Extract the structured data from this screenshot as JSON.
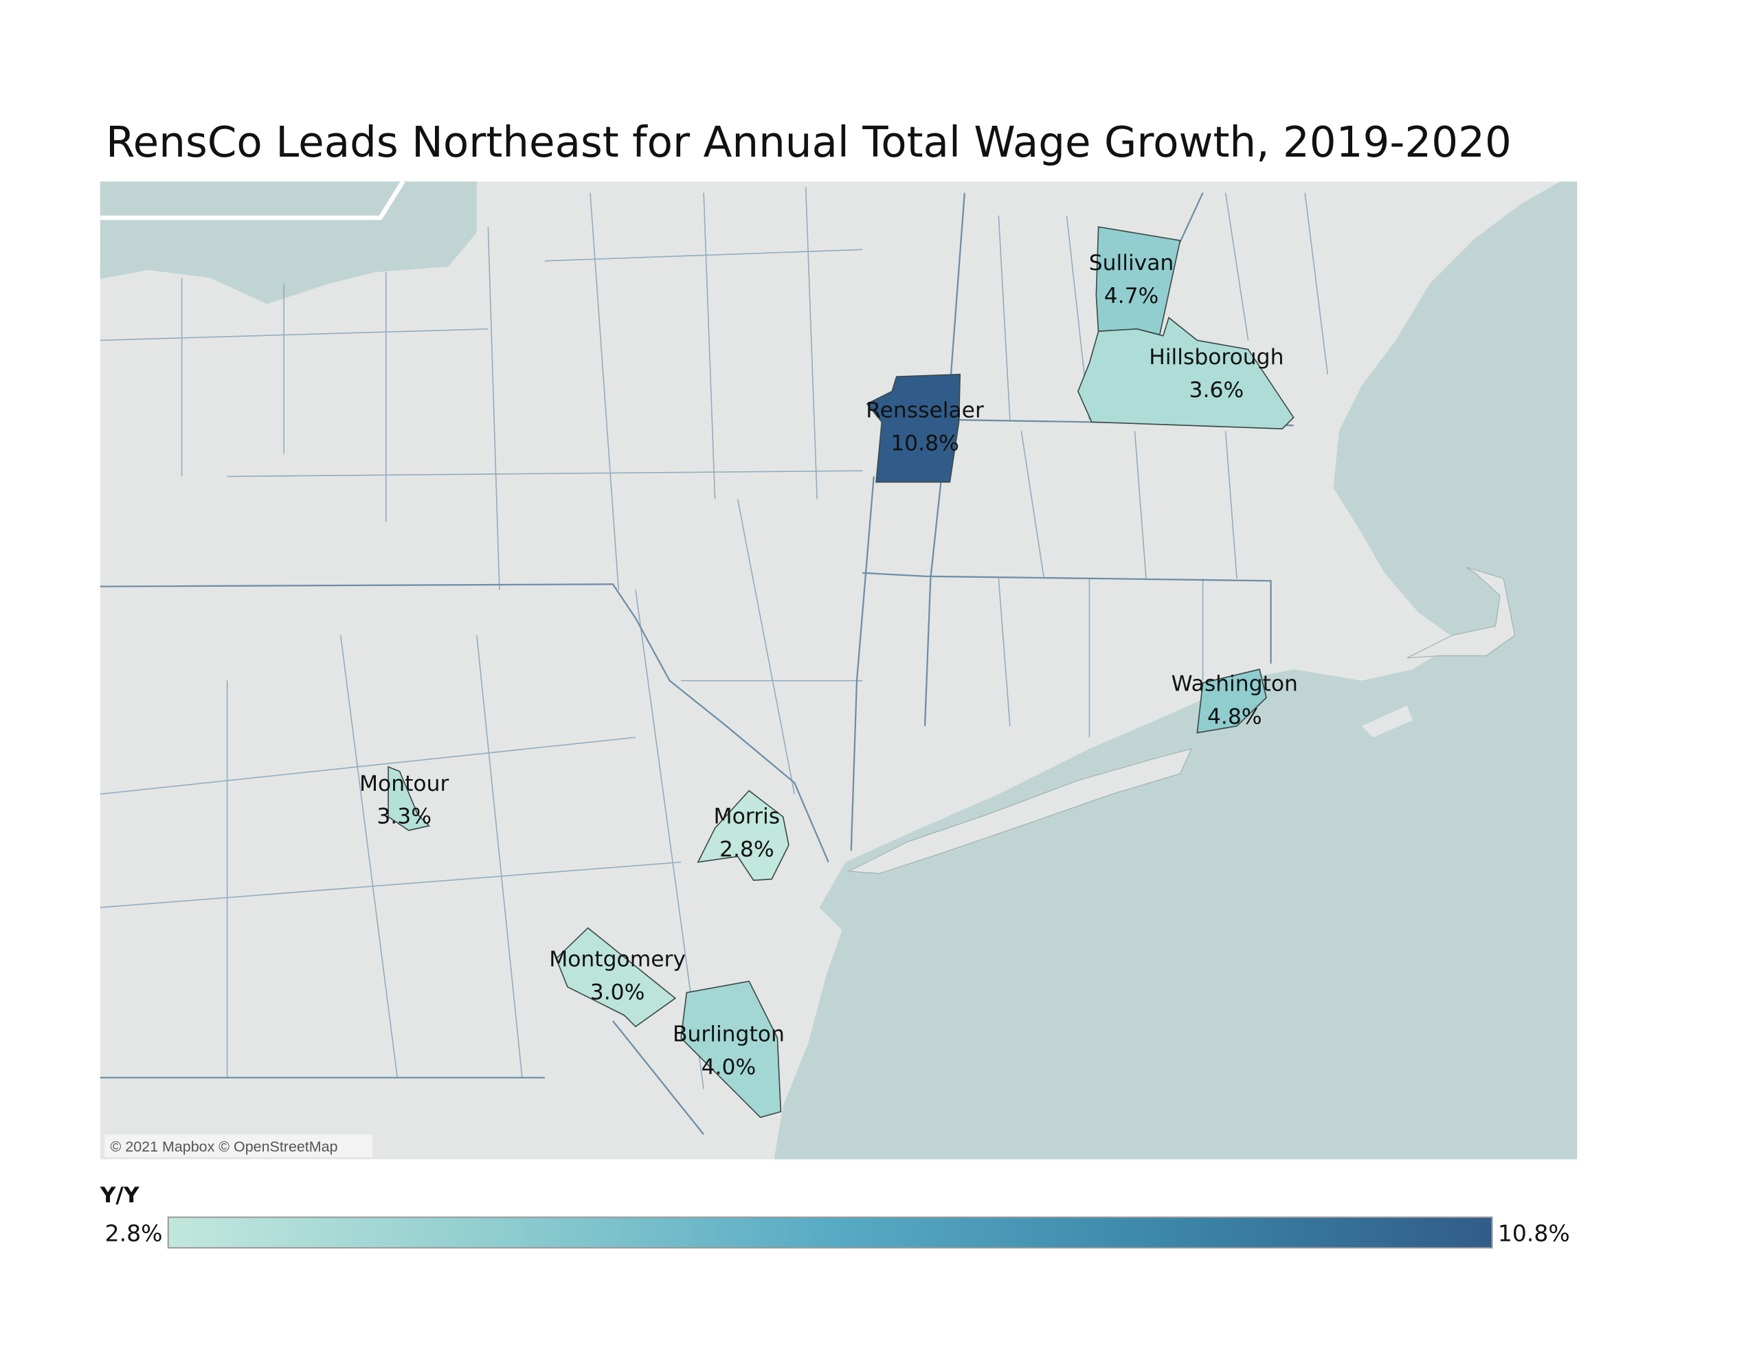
{
  "title": "RensCo Leads Northeast for Annual Total Wage Growth, 2019-2020",
  "attribution": "© 2021 Mapbox © OpenStreetMap",
  "legend": {
    "title": "Y/Y",
    "min_label": "2.8%",
    "max_label": "10.8%",
    "min_color": "#bfe5da",
    "max_color": "#305d8a"
  },
  "colors": {
    "land": "#e4e6e6",
    "water": "#c0d4d4",
    "county_outline": "#3c4a4a"
  },
  "chart_data": {
    "type": "choropleth-map",
    "measure": "Y/Y",
    "range": [
      2.8,
      10.8
    ],
    "regions": [
      {
        "name": "Rensselaer",
        "value": 10.8,
        "label": "10.8%"
      },
      {
        "name": "Sullivan",
        "value": 4.7,
        "label": "4.7%"
      },
      {
        "name": "Hillsborough",
        "value": 3.6,
        "label": "3.6%"
      },
      {
        "name": "Washington",
        "value": 4.8,
        "label": "4.8%"
      },
      {
        "name": "Montour",
        "value": 3.3,
        "label": "3.3%"
      },
      {
        "name": "Morris",
        "value": 2.8,
        "label": "2.8%"
      },
      {
        "name": "Montgomery",
        "value": 3.0,
        "label": "3.0%"
      },
      {
        "name": "Burlington",
        "value": 4.0,
        "label": "4.0%"
      }
    ]
  }
}
